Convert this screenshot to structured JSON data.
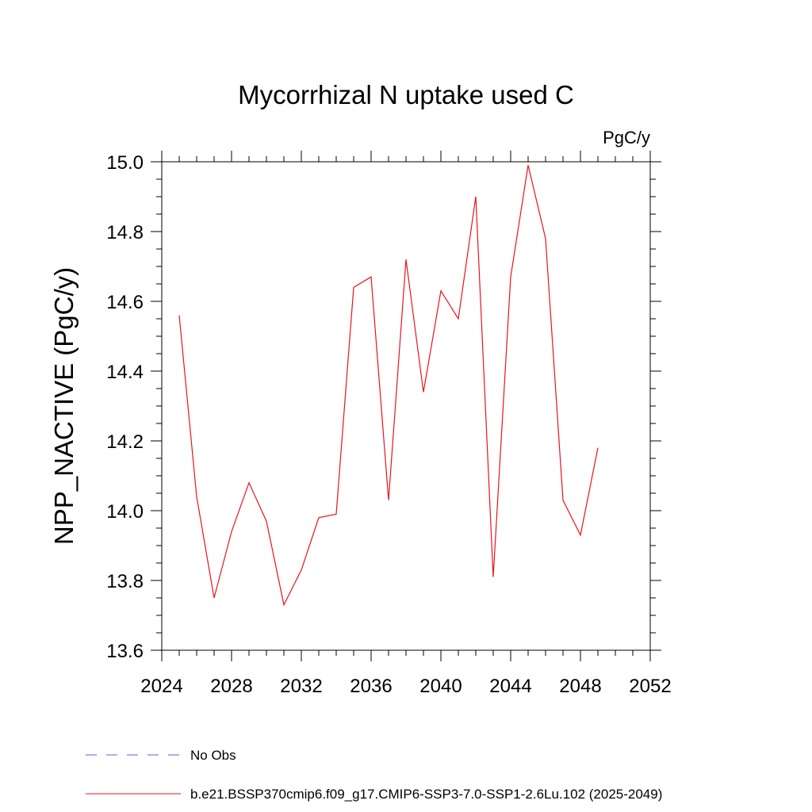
{
  "chart_data": {
    "type": "line",
    "title": "Mycorrhizal N uptake used C",
    "units_label": "PgC/y",
    "ylabel": "NPP_NACTIVE  (PgC/y)",
    "xlabel": "",
    "xlim": [
      2024,
      2052
    ],
    "ylim": [
      13.6,
      15.0
    ],
    "x_ticks": [
      2024,
      2028,
      2032,
      2036,
      2040,
      2044,
      2048,
      2052
    ],
    "y_ticks": [
      "13.6",
      "13.8",
      "14.0",
      "14.2",
      "14.4",
      "14.6",
      "14.8",
      "15.0"
    ],
    "grid": false,
    "legend_position": "bottom-left",
    "series": [
      {
        "name": "b.e21.BSSP370cmip6.f09_g17.CMIP6-SSP3-7.0-SSP1-2.6Lu.102 (2025-2049)",
        "color": "#e8141c",
        "dash": "solid",
        "x": [
          2025,
          2026,
          2027,
          2028,
          2029,
          2030,
          2031,
          2032,
          2033,
          2034,
          2035,
          2036,
          2037,
          2038,
          2039,
          2040,
          2041,
          2042,
          2043,
          2044,
          2045,
          2046,
          2047,
          2048,
          2049
        ],
        "y": [
          14.56,
          14.04,
          13.75,
          13.94,
          14.08,
          13.97,
          13.73,
          13.83,
          13.98,
          13.99,
          14.64,
          14.67,
          14.03,
          14.72,
          14.34,
          14.63,
          14.55,
          14.9,
          13.81,
          14.67,
          14.99,
          14.78,
          14.03,
          13.93,
          14.18
        ]
      }
    ],
    "legend": [
      {
        "label": "No Obs",
        "color": "#6a5acd",
        "dash": "dashed"
      },
      {
        "label": "b.e21.BSSP370cmip6.f09_g17.CMIP6-SSP3-7.0-SSP1-2.6Lu.102 (2025-2049)",
        "color": "#e8141c",
        "dash": "solid"
      }
    ]
  }
}
